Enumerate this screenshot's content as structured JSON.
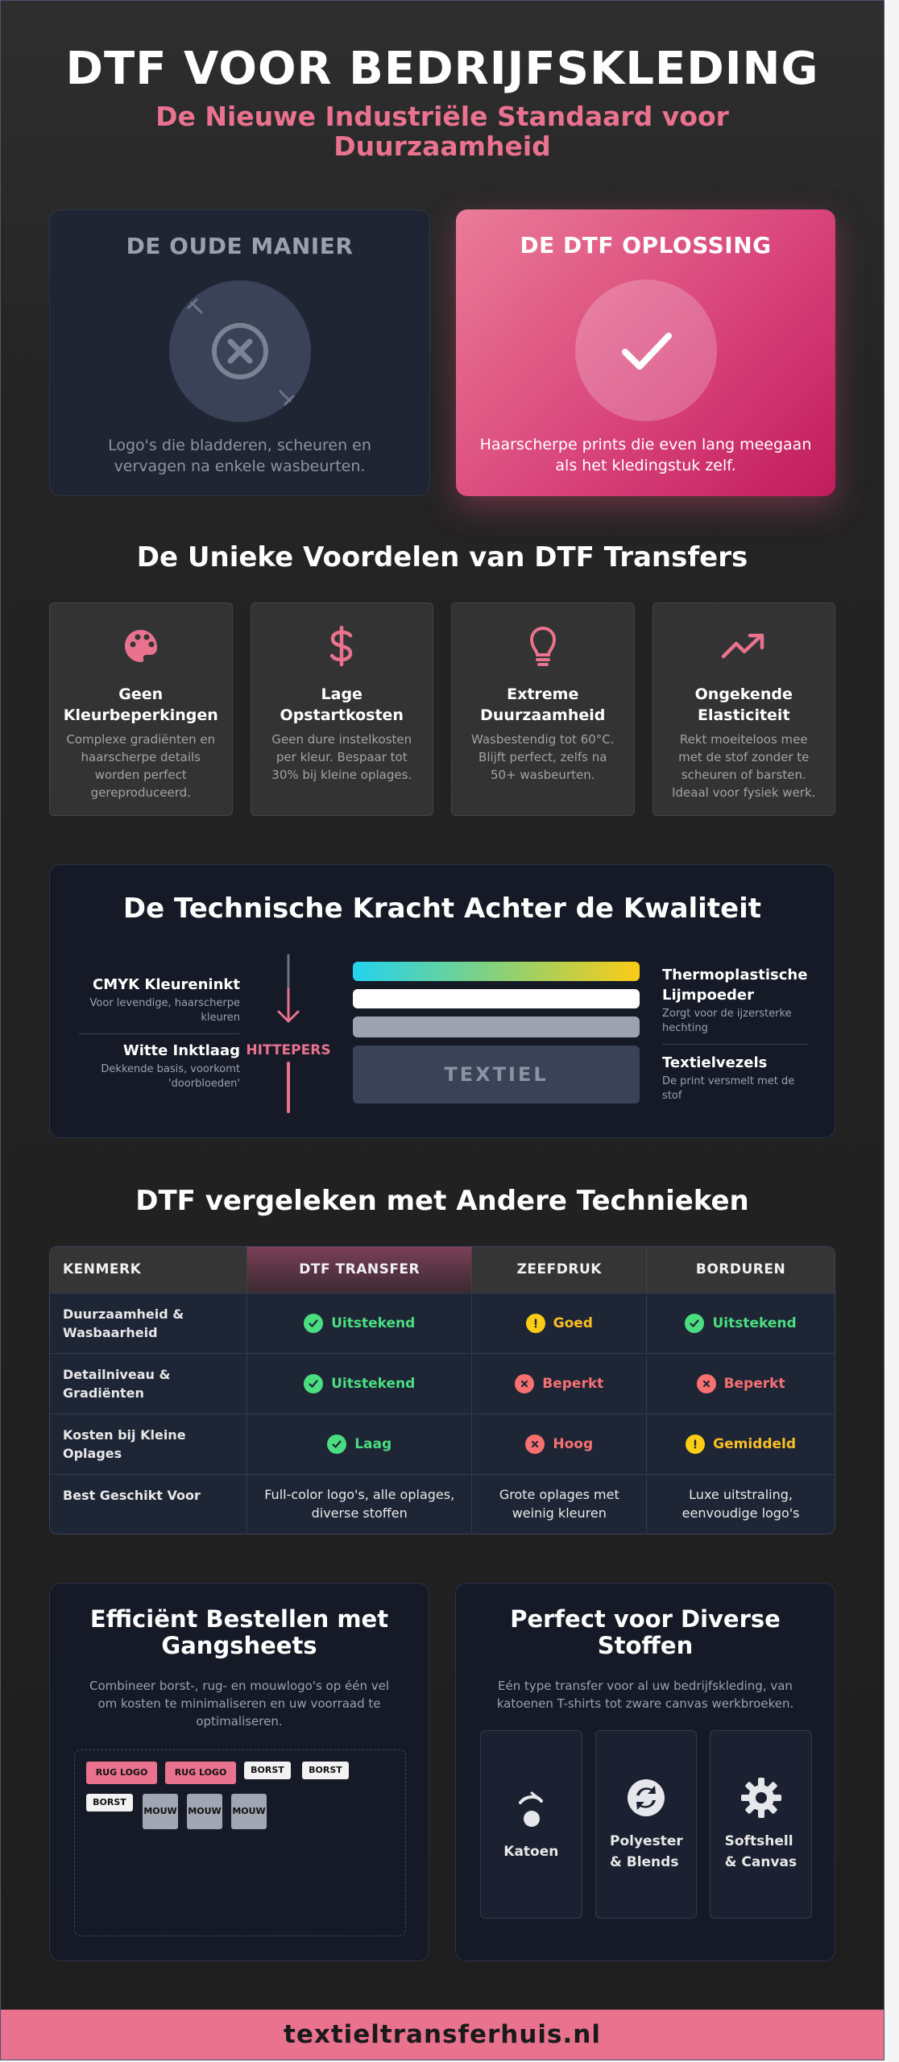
{
  "header": {
    "title": "DTF VOOR BEDRIJFSKLEDING",
    "subtitle": "De Nieuwe Industriële Standaard voor Duurzaamheid"
  },
  "comparison": {
    "old": {
      "title": "DE OUDE MANIER",
      "text": "Logo's die bladderen, scheuren en vervagen na enkele wasbeurten.",
      "icon": "x-circle-icon"
    },
    "new": {
      "title": "DE DTF OPLOSSING",
      "text": "Haarscherpe prints die even lang meegaan als het kledingstuk zelf.",
      "icon": "checkmark-icon"
    }
  },
  "benefits": {
    "title": "De Unieke Voordelen van DTF Transfers",
    "items": [
      {
        "icon": "palette-icon",
        "title": "Geen Kleurbeperkingen",
        "text": "Complexe gradiënten en haarscherpe details worden perfect gereproduceerd."
      },
      {
        "icon": "dollar-icon",
        "title": "Lage Opstartkosten",
        "text": "Geen dure instelkosten per kleur. Bespaar tot 30% bij kleine oplages."
      },
      {
        "icon": "lightbulb-icon",
        "title": "Extreme Duurzaamheid",
        "text": "Wasbestendig tot 60°C. Blijft perfect, zelfs na 50+ wasbeurten."
      },
      {
        "icon": "trending-up-icon",
        "title": "Ongekende Elasticiteit",
        "text": "Rekt moeiteloos mee met de stof zonder te scheuren of barsten. Ideaal voor fysiek werk."
      }
    ]
  },
  "technical": {
    "title": "De Technische Kracht Achter de Kwaliteit",
    "left": [
      {
        "title": "CMYK Kleureninkt",
        "text": "Voor levendige, haarscherpe kleuren"
      },
      {
        "title": "Witte Inktlaag",
        "text": "Dekkende basis, voorkomt 'doorbloeden'"
      }
    ],
    "press_label": "HITTEPERS",
    "layer_textile": "TEXTIEL",
    "right": [
      {
        "title": "Thermoplastische Lijmpoeder",
        "text": "Zorgt voor de ijzersterke hechting"
      },
      {
        "title": "Textielvezels",
        "text": "De print versmelt met de stof"
      }
    ]
  },
  "table": {
    "title": "DTF vergeleken met Andere Technieken",
    "headers": [
      "KENMERK",
      "DTF TRANSFER",
      "ZEEFDRUK",
      "BORDUREN"
    ],
    "rows": [
      {
        "feature": "Duurzaamheid & Wasbaarheid",
        "dtf": "Uitstekend",
        "zeef": "Goed",
        "bord": "Uitstekend"
      },
      {
        "feature": "Detailniveau & Gradiënten",
        "dtf": "Uitstekend",
        "zeef": "Beperkt",
        "bord": "Beperkt"
      },
      {
        "feature": "Kosten bij Kleine Oplages",
        "dtf": "Laag",
        "zeef": "Hoog",
        "bord": "Gemiddeld"
      },
      {
        "feature": "Best Geschikt Voor",
        "dtf": "Full-color logo's, alle oplages, diverse stoffen",
        "zeef": "Grote oplages met weinig kleuren",
        "bord": "Luxe uitstraling, eenvoudige logo's"
      }
    ]
  },
  "gangsheets": {
    "title": "Efficiënt Bestellen met Gangsheets",
    "text": "Combineer borst-, rug- en mouwlogo's op één vel om kosten te minimaliseren en uw voorraad te optimaliseren.",
    "tags": {
      "rug1": "RUG LOGO",
      "rug2": "RUG LOGO",
      "borst1": "BORST",
      "borst2": "BORST",
      "borst3": "BORST",
      "mouw1": "MOUW",
      "mouw2": "MOUW",
      "mouw3": "MOUW"
    }
  },
  "fabrics": {
    "title": "Perfect voor Diverse Stoffen",
    "text": "Eén type transfer voor al uw bedrijfskleding, van katoenen T-shirts tot zware canvas werkbroeken.",
    "items": [
      {
        "icon": "cotton-icon",
        "label": "Katoen"
      },
      {
        "icon": "recycle-icon",
        "label": "Polyester & Blends"
      },
      {
        "icon": "gear-icon",
        "label": "Softshell & Canvas"
      }
    ]
  },
  "footer": {
    "text": "textieltransferhuis.nl"
  },
  "colors": {
    "accent": "#e9728f",
    "good": "#4ade80",
    "warn": "#facc15",
    "bad": "#f87171",
    "card_dark": "#151a26"
  }
}
